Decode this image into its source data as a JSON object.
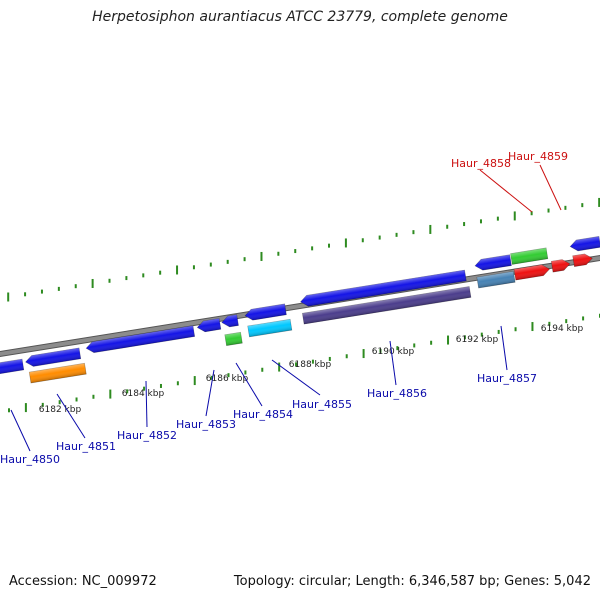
{
  "title": "Herpetosiphon aurantiacus ATCC 23779, complete genome",
  "footer": {
    "accession": "Accession: NC_009972",
    "stats": "Topology: circular; Length: 6,346,587 bp; Genes: 5,042"
  },
  "colors": {
    "backbone": "#8c8c8c",
    "tick_plus": "#2e8b20",
    "tick_minus": "#2e8b20",
    "label_default": "#0a0aaa",
    "label_highlight": "#cc1111"
  },
  "ticks": [
    {
      "label": "6182 kbp"
    },
    {
      "label": "6184 kbp"
    },
    {
      "label": "6186 kbp"
    },
    {
      "label": "6188 kbp"
    },
    {
      "label": "6190 kbp"
    },
    {
      "label": "6192 kbp"
    },
    {
      "label": "6194 kbp"
    }
  ],
  "labels": [
    {
      "name": "Haur_4850",
      "color": "#0a0aaa"
    },
    {
      "name": "Haur_4851",
      "color": "#0a0aaa"
    },
    {
      "name": "Haur_4852",
      "color": "#0a0aaa"
    },
    {
      "name": "Haur_4853",
      "color": "#0a0aaa"
    },
    {
      "name": "Haur_4854",
      "color": "#0a0aaa"
    },
    {
      "name": "Haur_4855",
      "color": "#0a0aaa"
    },
    {
      "name": "Haur_4856",
      "color": "#0a0aaa"
    },
    {
      "name": "Haur_4857",
      "color": "#0a0aaa"
    },
    {
      "name": "Haur_4858",
      "color": "#cc1111"
    },
    {
      "name": "Haur_4859",
      "color": "#cc1111"
    }
  ],
  "features": [
    {
      "color": "#1414e6"
    },
    {
      "color": "#1414e6"
    },
    {
      "color": "#ff8c00"
    },
    {
      "color": "#1414e6"
    },
    {
      "color": "#1414e6"
    },
    {
      "color": "#1414e6"
    },
    {
      "color": "#33cc33"
    },
    {
      "color": "#1414e6"
    },
    {
      "color": "#00c8ff"
    },
    {
      "color": "#1414e6"
    },
    {
      "color": "#4b3d8c"
    },
    {
      "color": "#1414e6"
    },
    {
      "color": "#4682b4"
    },
    {
      "color": "#33cc33"
    },
    {
      "color": "#ee1111"
    },
    {
      "color": "#ee1111"
    },
    {
      "color": "#ee1111"
    },
    {
      "color": "#1414e6"
    }
  ]
}
